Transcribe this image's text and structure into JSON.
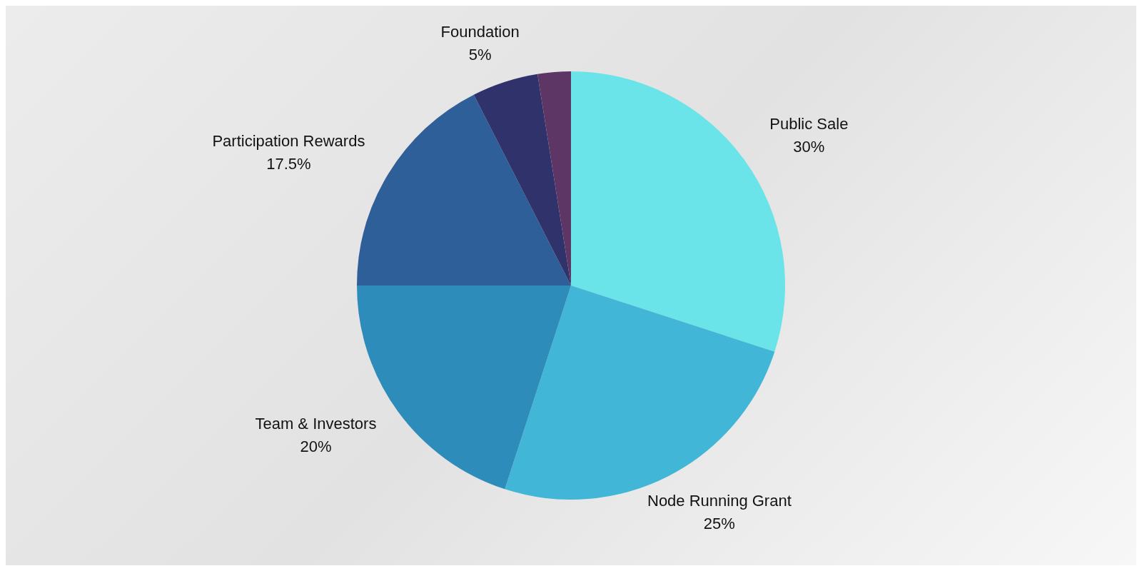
{
  "chart_data": {
    "type": "pie",
    "categories": [
      "Public Sale",
      "Node Running Grant",
      "Team & Investors",
      "Participation Rewards",
      "Foundation",
      null
    ],
    "values": [
      30,
      25,
      20,
      17.5,
      5,
      2.5
    ],
    "colors": [
      "#6ae4e9",
      "#42b6d6",
      "#2d8cba",
      "#2e5f98",
      "#30336b",
      "#5e3665"
    ],
    "value_labels": [
      "30%",
      "25%",
      "20%",
      "17.5%",
      "5%",
      null
    ],
    "legend": false
  }
}
